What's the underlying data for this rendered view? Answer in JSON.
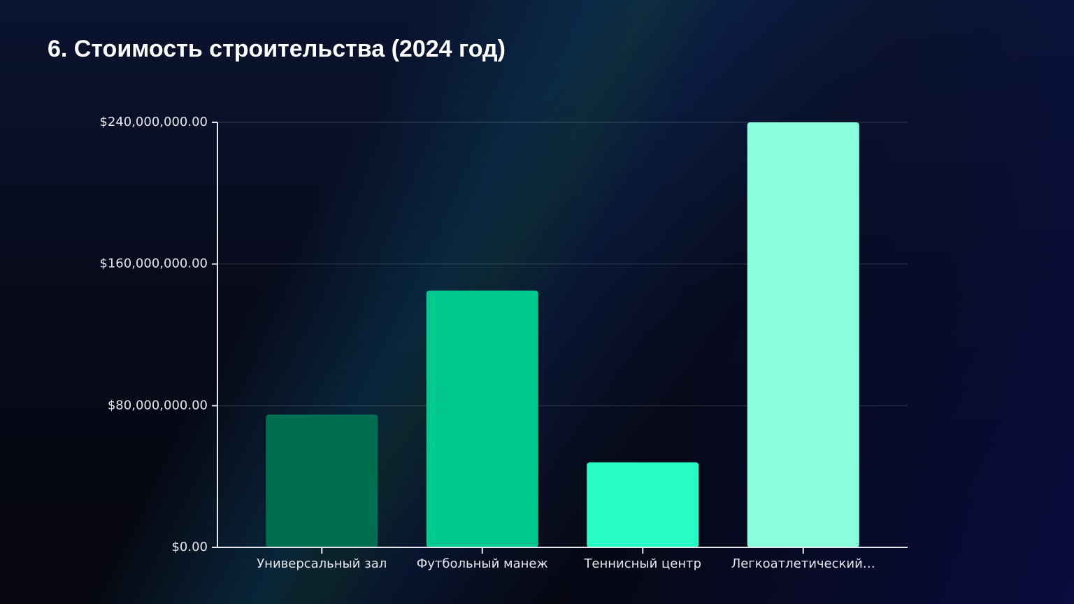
{
  "chart_data": {
    "type": "bar",
    "title": "6. Стоимость строительства (2024 год)",
    "categories": [
      "Универсальный зал",
      "Футбольный манеж",
      "Теннисный центр",
      "Легкоатлетический…"
    ],
    "values": [
      75000000,
      145000000,
      48000000,
      240000000
    ],
    "colors": [
      "#006e4f",
      "#00c98f",
      "#26fdc4",
      "#8affdc"
    ],
    "ylim": [
      0,
      240000000
    ],
    "yticks": [
      {
        "value": 0,
        "label": "$0.00"
      },
      {
        "value": 80000000,
        "label": "$80,000,000.00"
      },
      {
        "value": 160000000,
        "label": "$160,000,000.00"
      },
      {
        "value": 240000000,
        "label": "$240,000,000.00"
      }
    ],
    "grid": true
  }
}
